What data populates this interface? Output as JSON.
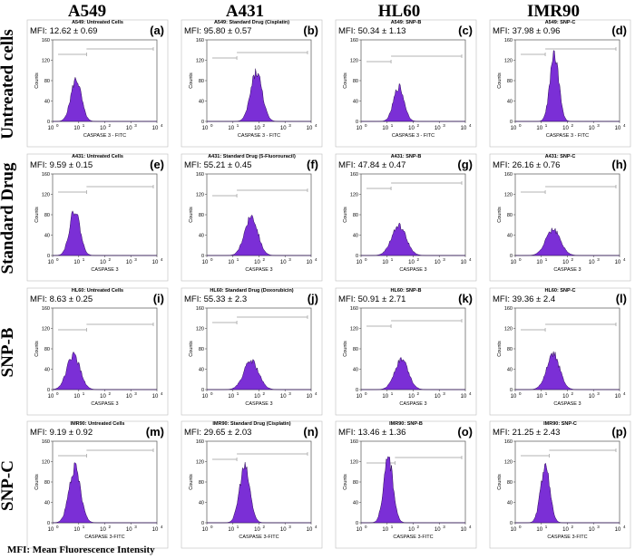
{
  "columns": [
    "A549",
    "A431",
    "HL60",
    "IMR90"
  ],
  "rows": [
    "Untreated cells",
    "Standard Drug",
    "SNP-B",
    "SNP-C"
  ],
  "footnote": "MFI: Mean Fluorescence Intensity",
  "colors": {
    "histogram": "#7b2fd6",
    "histogram_edge": "#2a0a55",
    "gate_line": "#9a9a9a"
  },
  "axis": {
    "y_label": "Counts",
    "y_ticks": [
      "0",
      "40",
      "80",
      "120",
      "160"
    ],
    "x_ticks": [
      "10",
      "10",
      "10",
      "10",
      "10"
    ],
    "x_tick_exps": [
      "0",
      "1",
      "2",
      "3",
      "4"
    ]
  },
  "chart_data": [
    {
      "type": "histogram",
      "panel": "a",
      "title": "A549: Untreated Cells",
      "mfi": "MFI: 12.62 ± 0.69",
      "xlabel": "CASPASE 3 - FITC",
      "ylabel": "Counts",
      "peak_log10": 0.9,
      "width": 0.2,
      "peak_count": 85,
      "xlim": [
        0,
        4
      ],
      "ylim": [
        0,
        160
      ]
    },
    {
      "type": "histogram",
      "panel": "e",
      "title": "A431: Untreated Cells",
      "mfi": "MFI: 9.59 ± 0.15",
      "xlabel": "CASPASE 3",
      "ylabel": "Counts",
      "peak_log10": 0.85,
      "width": 0.2,
      "peak_count": 92,
      "xlim": [
        0,
        4
      ],
      "ylim": [
        0,
        160
      ]
    },
    {
      "type": "histogram",
      "panel": "i",
      "title": "HL60: Untreated Cells",
      "mfi": "MFI: 8.63 ± 0.25",
      "xlabel": "CASPASE 3",
      "ylabel": "Counts",
      "peak_log10": 0.8,
      "width": 0.25,
      "peak_count": 70,
      "xlim": [
        0,
        4
      ],
      "ylim": [
        0,
        160
      ]
    },
    {
      "type": "histogram",
      "panel": "m",
      "title": "IMR90: Untreated Cells",
      "mfi": "MFI: 9.19 ± 0.92",
      "xlabel": "CASPASE 3-FITC",
      "ylabel": "Counts",
      "peak_log10": 0.85,
      "width": 0.22,
      "peak_count": 110,
      "xlim": [
        0,
        4
      ],
      "ylim": [
        0,
        160
      ]
    },
    {
      "type": "histogram",
      "panel": "b",
      "title": "A549: Standard Drug (Cisplatin)",
      "mfi": "MFI: 95.80 ± 0.57",
      "xlabel": "CASPASE 3 - FITC",
      "ylabel": "Counts",
      "peak_log10": 1.9,
      "width": 0.22,
      "peak_count": 100,
      "xlim": [
        0,
        4
      ],
      "ylim": [
        0,
        160
      ]
    },
    {
      "type": "histogram",
      "panel": "f",
      "title": "A431: Standard Drug (5-Fluorouracil)",
      "mfi": "MFI: 55.21 ± 0.45",
      "xlabel": "CASPASE 3",
      "ylabel": "Counts",
      "peak_log10": 1.7,
      "width": 0.25,
      "peak_count": 80,
      "xlim": [
        0,
        4
      ],
      "ylim": [
        0,
        160
      ]
    },
    {
      "type": "histogram",
      "panel": "j",
      "title": "HL60: Standard Drug (Doxorubicin)",
      "mfi": "MFI: 55.33 ± 2.3",
      "xlabel": "CASPASE 3",
      "ylabel": "Counts",
      "peak_log10": 1.7,
      "width": 0.28,
      "peak_count": 58,
      "xlim": [
        0,
        4
      ],
      "ylim": [
        0,
        160
      ]
    },
    {
      "type": "histogram",
      "panel": "n",
      "title": "IMR90: Standard Drug (Cisplatin)",
      "mfi": "MFI: 29.65 ± 2.03",
      "xlabel": "CASPASE 3-FITC",
      "ylabel": "Counts",
      "peak_log10": 1.45,
      "width": 0.2,
      "peak_count": 112,
      "xlim": [
        0,
        4
      ],
      "ylim": [
        0,
        160
      ]
    },
    {
      "type": "histogram",
      "panel": "c",
      "title": "A549: SNP-B",
      "mfi": "MFI: 50.34 ± 1.13",
      "xlabel": "CASPASE 3 - FITC",
      "ylabel": "Counts",
      "peak_log10": 1.45,
      "width": 0.2,
      "peak_count": 70,
      "xlim": [
        0,
        4
      ],
      "ylim": [
        0,
        160
      ]
    },
    {
      "type": "histogram",
      "panel": "g",
      "title": "A431: SNP-B",
      "mfi": "MFI: 47.84 ± 0.47",
      "xlabel": "CASPASE 3",
      "ylabel": "Counts",
      "peak_log10": 1.45,
      "width": 0.28,
      "peak_count": 60,
      "xlim": [
        0,
        4
      ],
      "ylim": [
        0,
        160
      ]
    },
    {
      "type": "histogram",
      "panel": "k",
      "title": "HL60: SNP-B",
      "mfi": "MFI: 50.91 ± 2.71",
      "xlabel": "CASPASE 3",
      "ylabel": "Counts",
      "peak_log10": 1.55,
      "width": 0.26,
      "peak_count": 62,
      "xlim": [
        0,
        4
      ],
      "ylim": [
        0,
        160
      ]
    },
    {
      "type": "histogram",
      "panel": "o",
      "title": "IMR90: SNP-B",
      "mfi": "MFI: 13.46 ± 1.36",
      "xlabel": "CASPASE 3-FITC",
      "ylabel": "Counts",
      "peak_log10": 1.05,
      "width": 0.18,
      "peak_count": 130,
      "xlim": [
        0,
        4
      ],
      "ylim": [
        0,
        160
      ]
    },
    {
      "type": "histogram",
      "panel": "d",
      "title": "A549: SNP-C",
      "mfi": "MFI: 37.98 ± 0.96",
      "xlabel": "CASPASE 3 - FITC",
      "ylabel": "Counts",
      "peak_log10": 1.5,
      "width": 0.17,
      "peak_count": 135,
      "xlim": [
        0,
        4
      ],
      "ylim": [
        0,
        160
      ]
    },
    {
      "type": "histogram",
      "panel": "h",
      "title": "A431: SNP-C",
      "mfi": "MFI: 26.16 ± 0.76",
      "xlabel": "CASPASE 3",
      "ylabel": "Counts",
      "peak_log10": 1.45,
      "width": 0.28,
      "peak_count": 52,
      "xlim": [
        0,
        4
      ],
      "ylim": [
        0,
        160
      ]
    },
    {
      "type": "histogram",
      "panel": "l",
      "title": "HL60: SNP-C",
      "mfi": "MFI: 39.36 ± 2.4",
      "xlabel": "CASPASE 3",
      "ylabel": "Counts",
      "peak_log10": 1.45,
      "width": 0.25,
      "peak_count": 72,
      "xlim": [
        0,
        4
      ],
      "ylim": [
        0,
        160
      ]
    },
    {
      "type": "histogram",
      "panel": "p",
      "title": "IMR90: SNP-C",
      "mfi": "MFI: 21.25 ± 2.43",
      "xlabel": "CASPASE 3-FITC",
      "ylabel": "Counts",
      "peak_log10": 1.15,
      "width": 0.18,
      "peak_count": 112,
      "xlim": [
        0,
        4
      ],
      "ylim": [
        0,
        160
      ]
    }
  ]
}
